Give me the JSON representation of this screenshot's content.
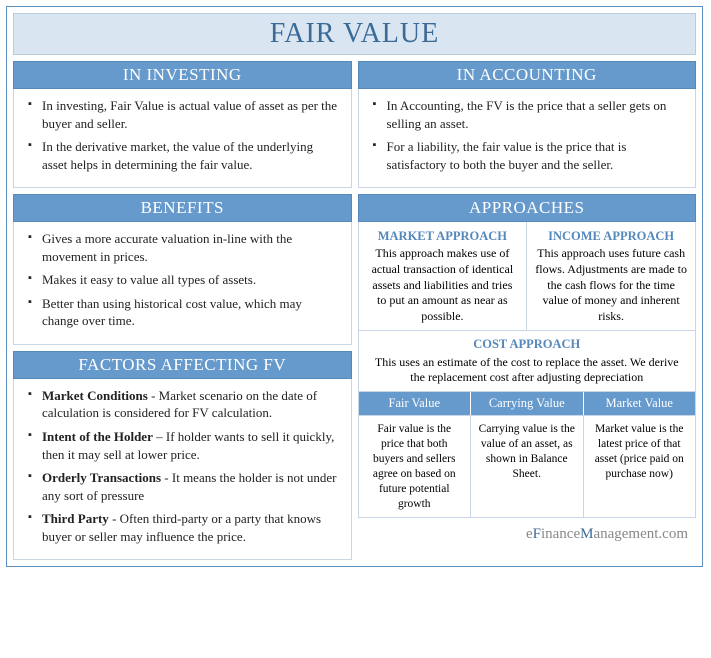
{
  "type": "infographic",
  "colors": {
    "border_outer": "#5a8fbf",
    "title_bg": "#d9e6f2",
    "title_text": "#3a6a96",
    "header_bg": "#6699cc",
    "header_text": "#ffffff",
    "cell_border": "#c8d6e5",
    "subheader_text": "#5588bb",
    "body_text": "#222222",
    "footer_text": "#3a6a96",
    "footer_gray": "#888888",
    "background": "#ffffff"
  },
  "typography": {
    "title_fontsize": 28,
    "header_fontsize": 17,
    "body_fontsize": 13,
    "small_fontsize": 12,
    "font_family": "Georgia, serif"
  },
  "title": "FAIR VALUE",
  "investing": {
    "header": "IN INVESTING",
    "items": [
      "In investing, Fair Value is actual value of asset as per the buyer and seller.",
      "In the derivative market, the value of the underlying asset helps in determining the fair value."
    ]
  },
  "accounting": {
    "header": "IN ACCOUNTING",
    "items": [
      "In Accounting, the FV is the price that a seller gets on selling an asset.",
      "For a liability, the fair value is the price that is satisfactory to both the buyer and the seller."
    ]
  },
  "benefits": {
    "header": "BENEFITS",
    "items": [
      "Gives a more accurate valuation in-line with the movement in prices.",
      "Makes it easy to value all types of assets.",
      "Better than using historical cost value, which may change over time."
    ]
  },
  "approaches": {
    "header": "APPROACHES",
    "market": {
      "title": "MARKET APPROACH",
      "text": "This approach makes use of actual transaction of identical assets and liabilities and tries to put an amount as near as possible."
    },
    "income": {
      "title": "INCOME APPROACH",
      "text": "This approach uses future cash flows. Adjustments are made to the cash flows for the time value of money and inherent risks."
    },
    "cost": {
      "title": "COST APPROACH",
      "text": "This uses an estimate of the cost to replace the asset. We derive the replacement cost after adjusting depreciation"
    },
    "valuetable": {
      "headers": [
        "Fair Value",
        "Carrying Value",
        "Market Value"
      ],
      "cells": [
        "Fair value is the price that both buyers and sellers agree on based on future potential growth",
        "Carrying value is the value of an asset, as shown in Balance Sheet.",
        "Market value is the latest price of that asset (price paid on purchase now)"
      ]
    }
  },
  "factors": {
    "header": "FACTORS AFFECTING FV",
    "items": [
      {
        "bold": "Market Conditions",
        "sep": " - ",
        "text": "Market scenario on the date of calculation is considered for FV calculation."
      },
      {
        "bold": "Intent of the Holder",
        "sep": " – ",
        "text": "If holder wants to sell it quickly, then it may sell at lower price."
      },
      {
        "bold": "Orderly Transactions",
        "sep": " - ",
        "text": "It means the holder is not under any sort of pressure"
      },
      {
        "bold": "Third Party",
        "sep": " - ",
        "text": "Often third-party or a party that knows buyer or seller may influence the price."
      }
    ]
  },
  "footer": {
    "p1": "e",
    "p2": "F",
    "p3": "inance",
    "p4": "M",
    "p5": "anagement",
    "p6": ".com"
  }
}
